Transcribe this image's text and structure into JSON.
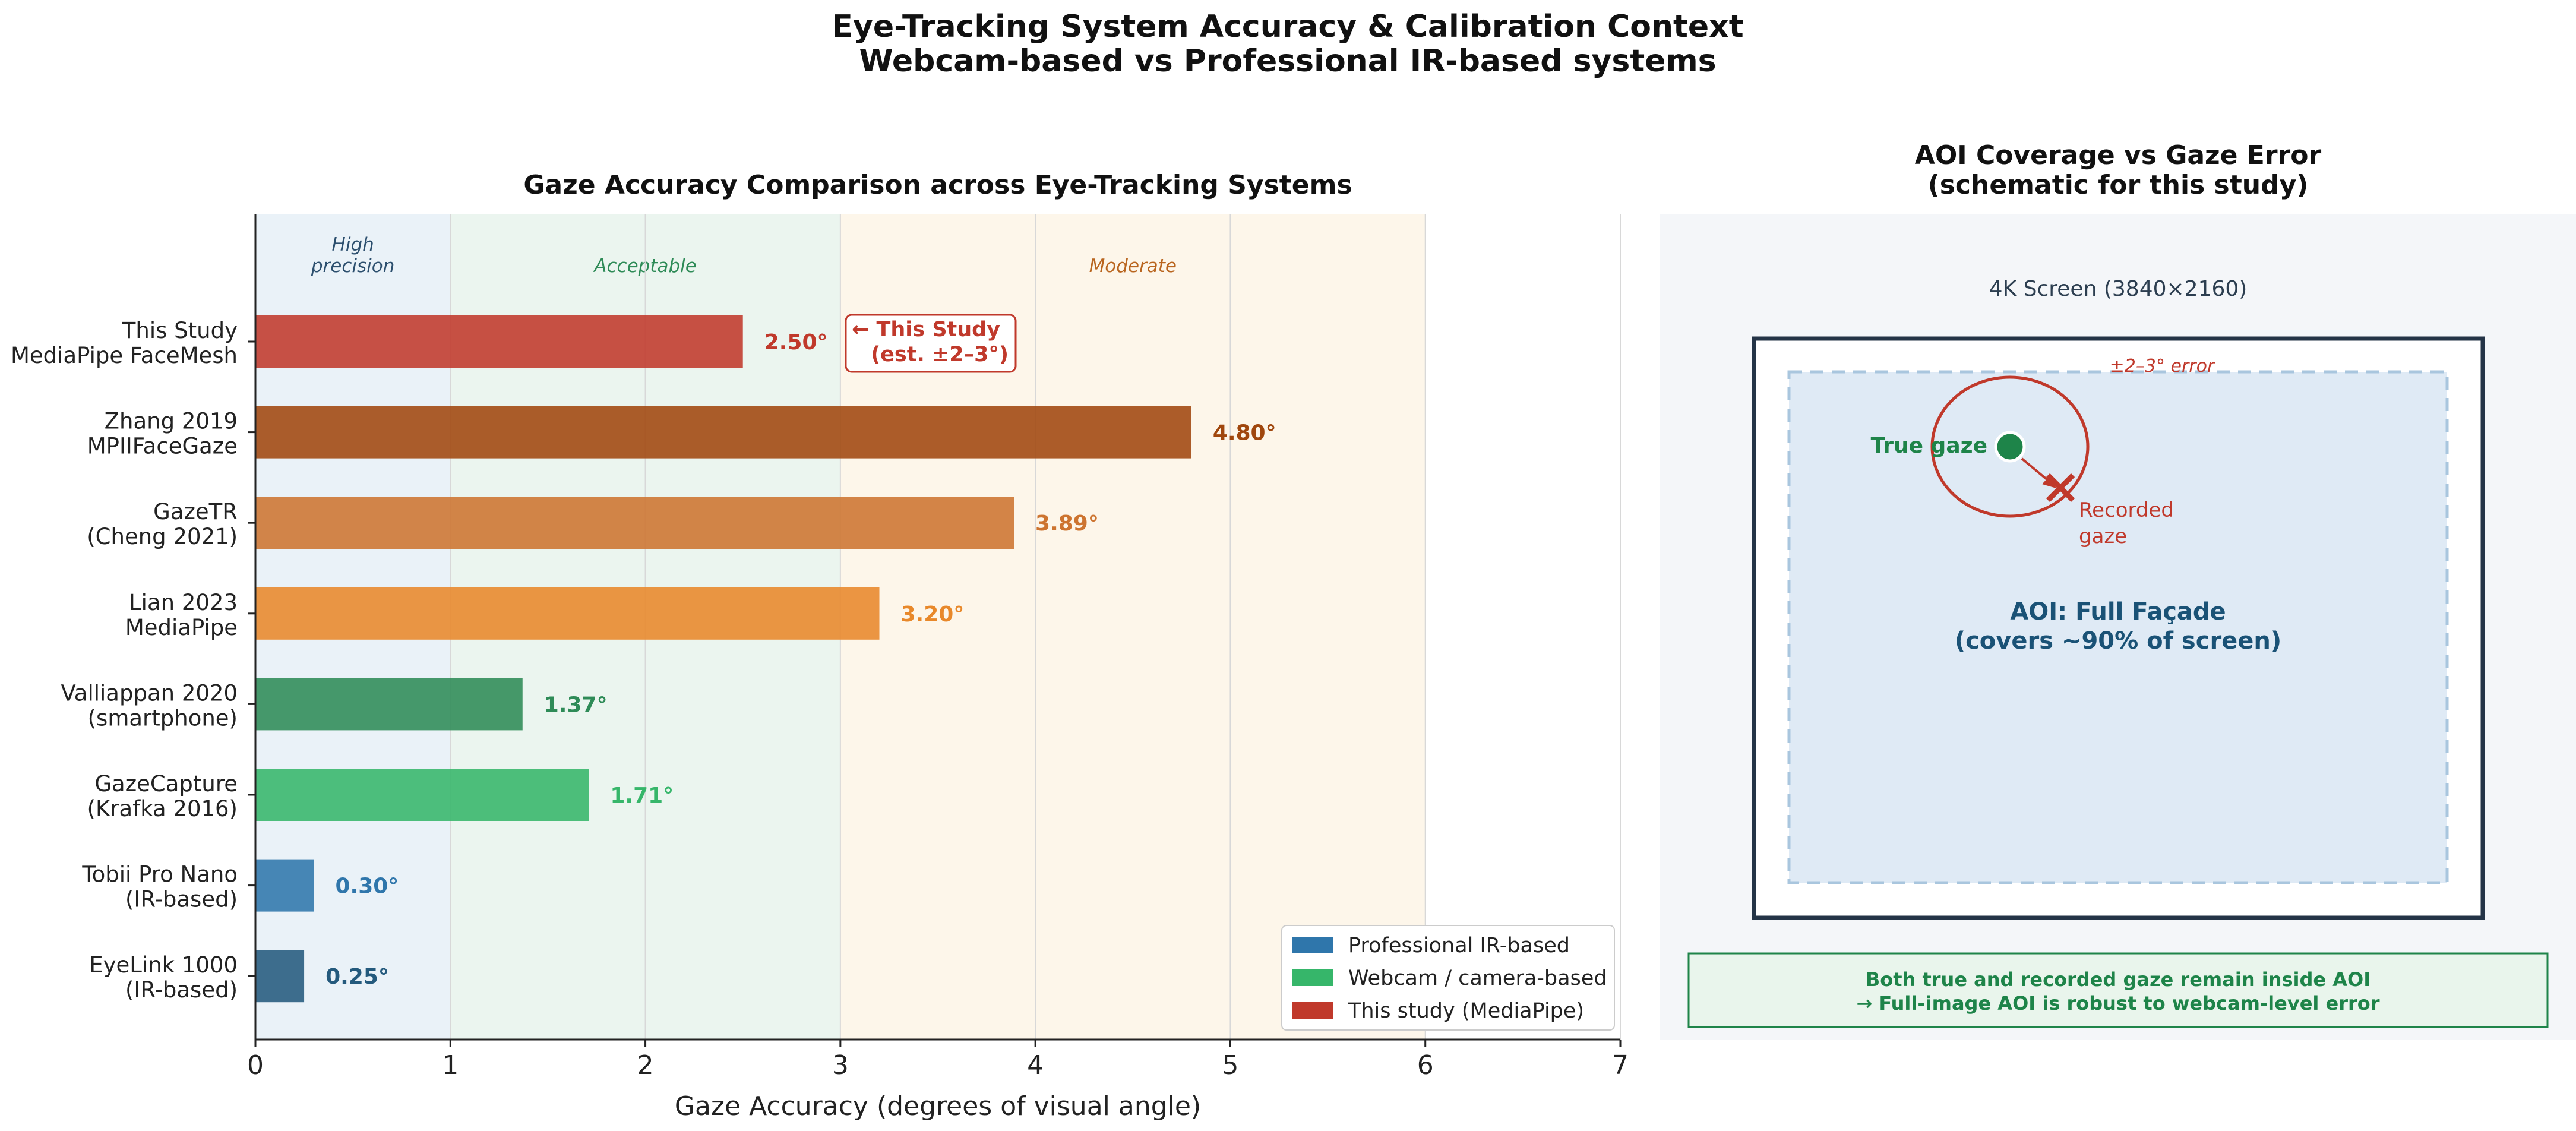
{
  "figure": {
    "title_line1": "Eye-Tracking System Accuracy & Calibration Context",
    "title_line2": "Webcam-based vs Professional IR-based systems"
  },
  "chart_data": [
    {
      "type": "bar",
      "orientation": "horizontal",
      "title": "Gaze Accuracy Comparison across Eye-Tracking Systems",
      "xlabel": "Gaze Accuracy (degrees of visual angle)",
      "ylabel": "",
      "xlim": [
        0,
        7
      ],
      "xticks": [
        0,
        1,
        2,
        3,
        4,
        5,
        6,
        7
      ],
      "grid": "vertical",
      "categories": [
        {
          "line1": "This Study",
          "line2": "MediaPipe FaceMesh"
        },
        {
          "line1": "Zhang 2019",
          "line2": "MPIIFaceGaze"
        },
        {
          "line1": "GazeTR",
          "line2": "(Cheng 2021)"
        },
        {
          "line1": "Lian 2023",
          "line2": "MediaPipe"
        },
        {
          "line1": "Valliappan 2020",
          "line2": "(smartphone)"
        },
        {
          "line1": "GazeCapture",
          "line2": "(Krafka 2016)"
        },
        {
          "line1": "Tobii Pro Nano",
          "line2": "(IR-based)"
        },
        {
          "line1": "EyeLink 1000",
          "line2": "(IR-based)"
        }
      ],
      "values": [
        2.5,
        4.8,
        3.89,
        3.2,
        1.37,
        1.71,
        0.3,
        0.25
      ],
      "value_labels": [
        "2.50°",
        "4.80°",
        "3.89°",
        "3.20°",
        "1.37°",
        "1.71°",
        "0.30°",
        "0.25°"
      ],
      "bar_colors": [
        "#c0392b",
        "#a0470e",
        "#cd7430",
        "#e8882a",
        "#2e8b57",
        "#36b66a",
        "#2f76ab",
        "#245a7d"
      ],
      "label_colors": [
        "#c0392b",
        "#a0470e",
        "#cd7430",
        "#e8882a",
        "#2e8b57",
        "#36b66a",
        "#2f76ab",
        "#245a7d"
      ],
      "zones": [
        {
          "label_line1": "High",
          "label_line2": "precision",
          "from": 0,
          "to": 1,
          "color": "#eaf2f8",
          "text_color": "#2c4f6e"
        },
        {
          "label_line1": "Acceptable",
          "label_line2": "",
          "from": 1,
          "to": 3,
          "color": "#ebf5ef",
          "text_color": "#2e8b57"
        },
        {
          "label_line1": "Moderate",
          "label_line2": "",
          "from": 3,
          "to": 6,
          "color": "#fdf6ea",
          "text_color": "#b9651f"
        }
      ],
      "annotation": {
        "line1": "← This Study",
        "line2": "(est. ±2–3°)",
        "color": "#c0392b"
      },
      "legend": {
        "position": "lower-right",
        "entries": [
          {
            "label": "Professional IR-based",
            "color": "#2f76ab"
          },
          {
            "label": "Webcam / camera-based",
            "color": "#36b66a"
          },
          {
            "label": "This study (MediaPipe)",
            "color": "#c0392b"
          }
        ]
      }
    }
  ],
  "schematic": {
    "title_line1": "AOI Coverage vs Gaze Error",
    "title_line2": "(schematic for this study)",
    "screen_label": "4K Screen (3840×2160)",
    "error_label": "±2–3° error",
    "true_gaze_label": "True gaze",
    "recorded_label_line1": "Recorded",
    "recorded_label_line2": "gaze",
    "aoi_label_line1": "AOI: Full Façade",
    "aoi_label_line2": "(covers ~90% of screen)",
    "note_line1": "Both true and recorded gaze remain inside AOI",
    "note_line2": "→ Full-image AOI is robust to webcam-level error",
    "colors": {
      "true_gaze": "#1e8449",
      "recorded": "#c0392b",
      "aoi_text": "#1a5276",
      "screen_border": "#243447"
    }
  }
}
